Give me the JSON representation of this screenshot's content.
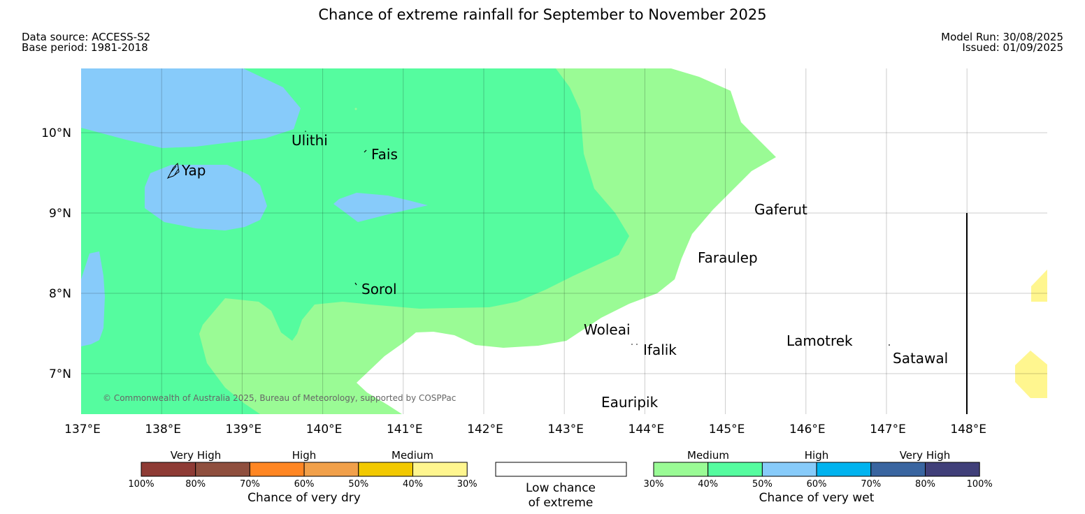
{
  "header": {
    "title": "Chance of extreme rainfall for September to November 2025",
    "data_source": "Data source: ACCESS-S2",
    "base_period": "Base period: 1981-2018",
    "model_run": "Model Run: 30/08/2025",
    "issued": "Issued: 01/09/2025"
  },
  "map": {
    "lat_labels": [
      "10°N",
      "9°N",
      "8°N",
      "7°N"
    ],
    "lon_labels": [
      "137°E",
      "138°E",
      "139°E",
      "140°E",
      "141°E",
      "142°E",
      "143°E",
      "144°E",
      "145°E",
      "146°E",
      "147°E",
      "148°E"
    ],
    "places": [
      "Ulithi",
      "Fais",
      "Yap",
      "Gaferut",
      "Faraulep",
      "Sorol",
      "Woleai",
      "Ifalik",
      "Lamotrek",
      "Satawal",
      "Eauripik"
    ],
    "copyright": "© Commonwealth of Australia 2025, Bureau of Meteorology, supported by COSPPac"
  },
  "legend": {
    "dry": {
      "categories": [
        "Very High",
        "High",
        "Medium"
      ],
      "colors": [
        "#8e3b35",
        "#8f4f3e",
        "#ff8623",
        "#f1a04a",
        "#f2c900",
        "#fff68f"
      ],
      "ticks": [
        "100%",
        "80%",
        "70%",
        "60%",
        "50%",
        "40%",
        "30%"
      ],
      "title": "Chance of very dry"
    },
    "low": {
      "line1": "Low chance",
      "line2": "of extreme"
    },
    "wet": {
      "categories": [
        "Medium",
        "High",
        "Very High"
      ],
      "colors": [
        "#9afb95",
        "#55fc9f",
        "#87cbfa",
        "#00b3ef",
        "#3965a0",
        "#403f79"
      ],
      "ticks": [
        "30%",
        "40%",
        "50%",
        "60%",
        "70%",
        "80%",
        "100%"
      ],
      "title": "Chance of very wet"
    }
  }
}
